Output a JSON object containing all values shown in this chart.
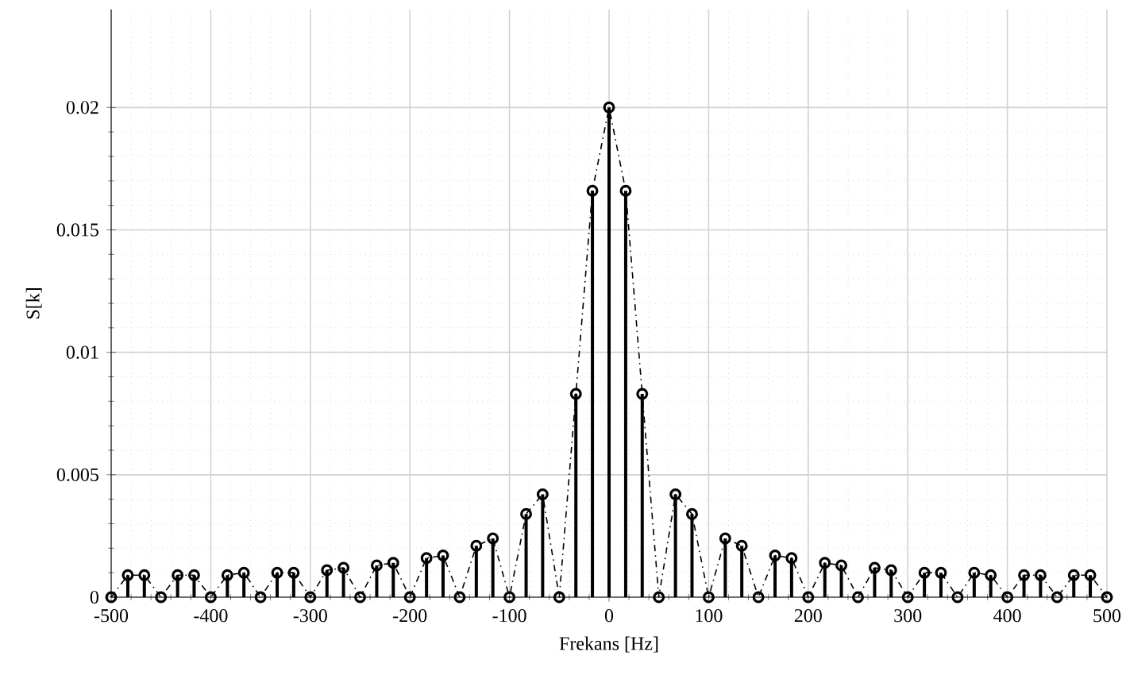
{
  "chart_data": {
    "type": "lollipop",
    "xlabel": "Frekans [Hz]",
    "ylabel": "S[k]",
    "x": [
      -500,
      -483.3,
      -466.7,
      -450,
      -433.3,
      -416.7,
      -400,
      -383.3,
      -366.7,
      -350,
      -333.3,
      -316.7,
      -300,
      -283.3,
      -266.7,
      -250,
      -233.3,
      -216.7,
      -200,
      -183.3,
      -166.7,
      -150,
      -133.3,
      -116.7,
      -100,
      -83.3,
      -66.7,
      -50,
      -33.3,
      -16.7,
      0,
      16.7,
      33.3,
      50,
      66.7,
      83.3,
      100,
      116.7,
      133.3,
      150,
      166.7,
      183.3,
      200,
      216.7,
      233.3,
      250,
      266.7,
      283.3,
      300,
      316.7,
      333.3,
      350,
      366.7,
      383.3,
      400,
      416.7,
      433.3,
      450,
      466.7,
      483.3,
      500
    ],
    "series": [
      {
        "color": "#000000",
        "marker": "circle",
        "values": [
          0,
          0.0009,
          0.0009,
          0,
          0.0009,
          0.0009,
          0,
          0.0009,
          0.001,
          0,
          0.001,
          0.001,
          0,
          0.0011,
          0.0012,
          0,
          0.0013,
          0.0014,
          0,
          0.0016,
          0.0017,
          0,
          0.0021,
          0.0024,
          0,
          0.0034,
          0.0042,
          0,
          0.0083,
          0.0166,
          0.02,
          0.0166,
          0.0083,
          0,
          0.0042,
          0.0034,
          0,
          0.0024,
          0.0021,
          0,
          0.0017,
          0.0016,
          0,
          0.0014,
          0.0013,
          0,
          0.0012,
          0.0011,
          0,
          0.001,
          0.001,
          0,
          0.001,
          0.0009,
          0,
          0.0009,
          0.0009,
          0,
          0.0009,
          0.0009,
          0
        ]
      },
      {
        "type": "line",
        "color": "#000000",
        "line_style": "dashed",
        "marker": "none",
        "values": [
          0,
          0.0009,
          0.0009,
          0,
          0.0009,
          0.0009,
          0,
          0.0009,
          0.001,
          0,
          0.001,
          0.001,
          0,
          0.0011,
          0.0012,
          0,
          0.0013,
          0.0014,
          0,
          0.0016,
          0.0017,
          0,
          0.0021,
          0.0024,
          0,
          0.0034,
          0.0042,
          0,
          0.0083,
          0.0166,
          0.02,
          0.0166,
          0.0083,
          0,
          0.0042,
          0.0034,
          0,
          0.0024,
          0.0021,
          0,
          0.0017,
          0.0016,
          0,
          0.0014,
          0.0013,
          0,
          0.0012,
          0.0011,
          0,
          0.001,
          0.001,
          0,
          0.001,
          0.0009,
          0,
          0.0009,
          0.0009,
          0,
          0.0009,
          0.0009,
          0
        ]
      }
    ],
    "xlim": [
      -500,
      500
    ],
    "ylim": [
      0,
      0.024
    ],
    "xticks": [
      -500,
      -400,
      -300,
      -200,
      -100,
      0,
      100,
      200,
      300,
      400,
      500
    ],
    "yticks": [
      0,
      0.005,
      0.01,
      0.015,
      0.02
    ],
    "grid": true
  }
}
